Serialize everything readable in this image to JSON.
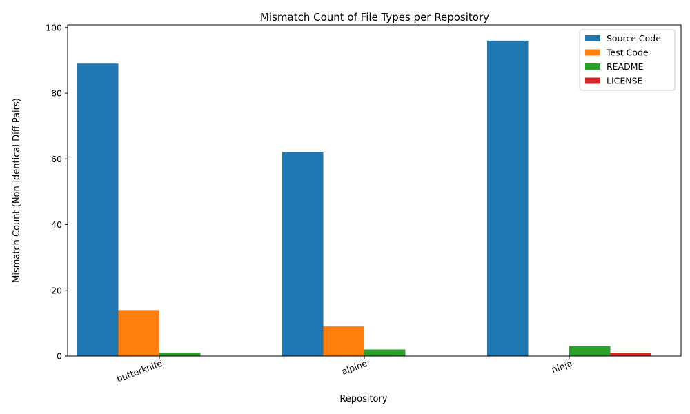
{
  "chart_data": {
    "type": "bar",
    "title": "Mismatch Count of File Types per Repository",
    "xlabel": "Repository",
    "ylabel": "Mismatch Count (Non-identical Diff Pairs)",
    "categories": [
      "butterknife",
      "alpine",
      "ninja"
    ],
    "ylim": [
      0,
      100.8
    ],
    "yticks": [
      0,
      20,
      40,
      60,
      80,
      100
    ],
    "grid": false,
    "legend_position": "top-right",
    "series": [
      {
        "name": "Source Code",
        "color": "#1f77b4",
        "values": [
          89,
          62,
          96
        ]
      },
      {
        "name": "Test Code",
        "color": "#ff7f0e",
        "values": [
          14,
          9,
          0
        ]
      },
      {
        "name": "README",
        "color": "#2ca02c",
        "values": [
          1,
          2,
          3
        ]
      },
      {
        "name": "LICENSE",
        "color": "#d62728",
        "values": [
          0,
          0,
          1
        ]
      }
    ]
  }
}
